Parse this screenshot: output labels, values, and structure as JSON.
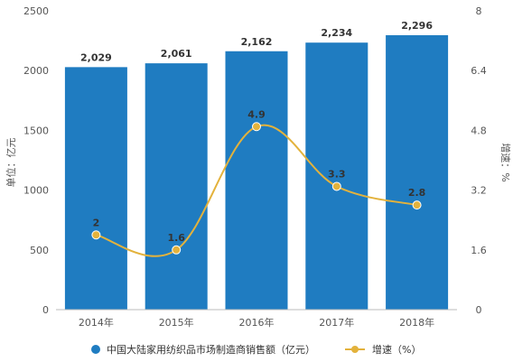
{
  "chart_data": {
    "type": "bar",
    "categories": [
      "2014年",
      "2015年",
      "2016年",
      "2017年",
      "2018年"
    ],
    "series": [
      {
        "name": "中国大陆家用纺织品市场制造商销售额（亿元）",
        "type": "bar",
        "axis": "left",
        "color": "#1f7cc1",
        "values": [
          2029,
          2061,
          2162,
          2234,
          2296
        ],
        "labels": [
          "2,029",
          "2,061",
          "2,162",
          "2,234",
          "2,296"
        ]
      },
      {
        "name": "增速（%）",
        "type": "line",
        "axis": "right",
        "color": "#e3b23c",
        "values": [
          2,
          1.6,
          4.9,
          3.3,
          2.8
        ],
        "labels": [
          "2",
          "1.6",
          "4.9",
          "3.3",
          "2.8"
        ]
      }
    ],
    "ylabel": "单位：亿元",
    "y2label": "增速：%",
    "ylim": [
      0,
      2500
    ],
    "y2lim": [
      0,
      8
    ],
    "yticks": [
      "0",
      "500",
      "1000",
      "1500",
      "2000",
      "2500"
    ],
    "y2ticks": [
      "0",
      "1.6",
      "3.2",
      "4.8",
      "6.4",
      "8"
    ],
    "grid": false,
    "legend": "bottom"
  }
}
